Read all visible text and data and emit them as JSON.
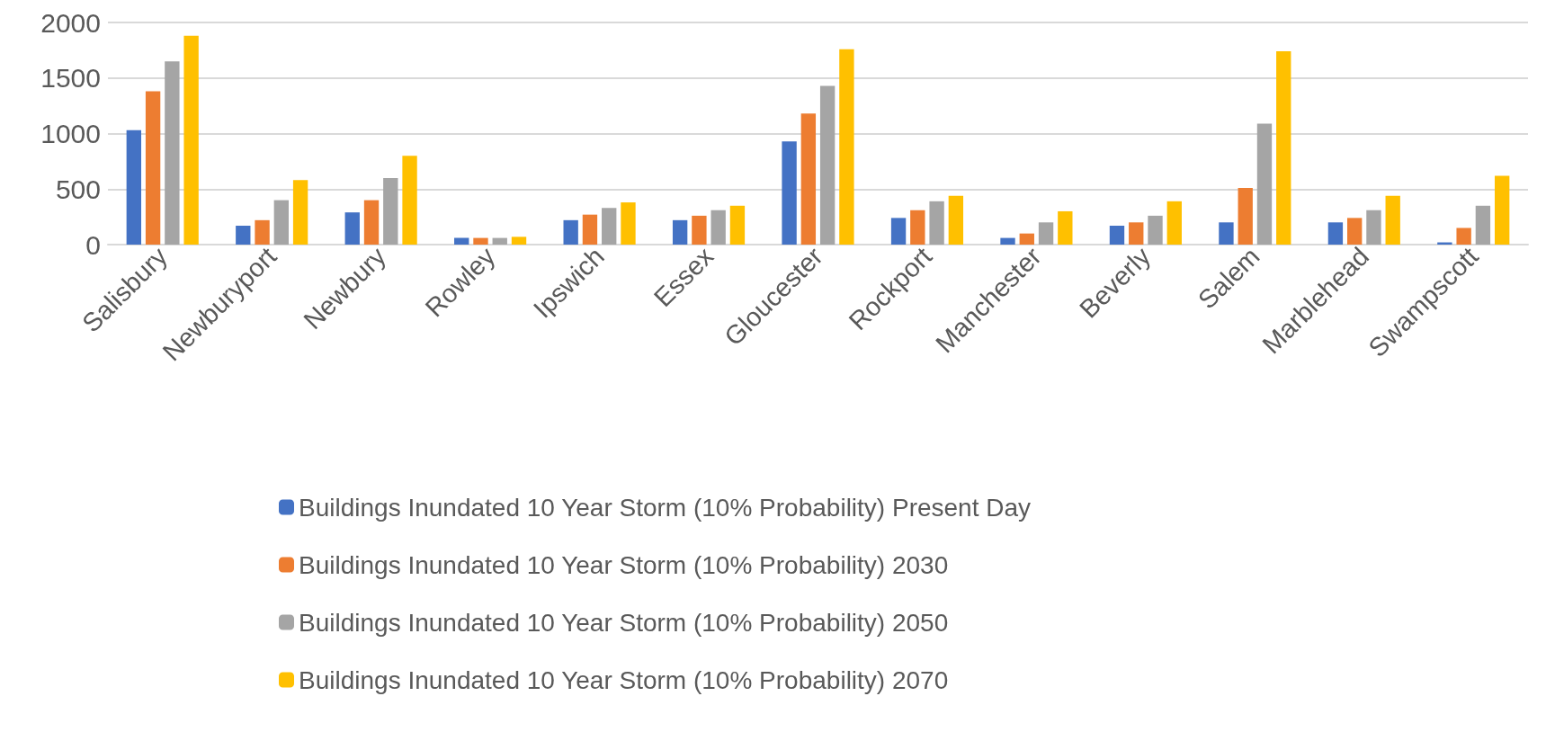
{
  "chart_data": {
    "type": "bar",
    "categories": [
      "Salisbury",
      "Newburyport",
      "Newbury",
      "Rowley",
      "Ipswich",
      "Essex",
      "Gloucester",
      "Rockport",
      "Manchester",
      "Beverly",
      "Salem",
      "Marblehead",
      "Swampscott"
    ],
    "series": [
      {
        "name": "Buildings Inundated 10 Year Storm (10% Probability) Present Day",
        "color": "#4472c4",
        "values": [
          1030,
          170,
          290,
          60,
          220,
          220,
          930,
          240,
          60,
          170,
          200,
          200,
          20
        ]
      },
      {
        "name": "Buildings Inundated 10 Year Storm (10% Probability) 2030",
        "color": "#ed7d31",
        "values": [
          1380,
          220,
          400,
          60,
          270,
          260,
          1180,
          310,
          100,
          200,
          510,
          240,
          150
        ]
      },
      {
        "name": "Buildings Inundated 10 Year Storm (10% Probability) 2050",
        "color": "#a5a5a5",
        "values": [
          1650,
          400,
          600,
          60,
          330,
          310,
          1430,
          390,
          200,
          260,
          1090,
          310,
          350
        ]
      },
      {
        "name": "Buildings Inundated 10 Year Storm (10% Probability) 2070",
        "color": "#ffc000",
        "values": [
          1880,
          580,
          800,
          70,
          380,
          350,
          1760,
          440,
          300,
          390,
          1740,
          440,
          620
        ]
      }
    ],
    "ylim": [
      0,
      2000
    ],
    "yticks": [
      0,
      500,
      1000,
      1500,
      2000
    ],
    "grid": "y",
    "legend": "bottom"
  }
}
